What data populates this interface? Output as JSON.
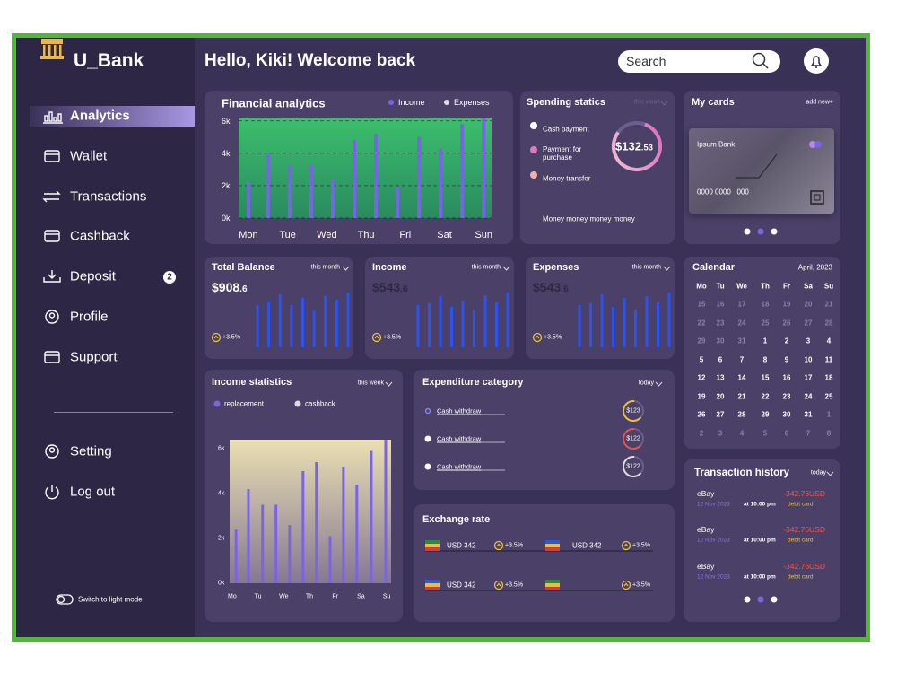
{
  "sidebar": {
    "logo": "U_Bank",
    "nav": [
      {
        "label": "Analytics"
      },
      {
        "label": "Wallet"
      },
      {
        "label": "Transactions"
      },
      {
        "label": "Cashback"
      },
      {
        "label": "Deposit",
        "badge": "2"
      },
      {
        "label": "Profile"
      },
      {
        "label": "Support"
      }
    ],
    "bottom_nav": [
      "Setting",
      "Log out"
    ],
    "theme_toggle": "Switch to light mode"
  },
  "header": {
    "greeting": "Hello, Kiki! Welcome back",
    "search_placeholder": "Search"
  },
  "financial_analytics": {
    "title": "Financial analytics",
    "legend": [
      {
        "name": "Income",
        "color": "#7b63e6"
      },
      {
        "name": "Expenses",
        "color": "#dddddd"
      }
    ],
    "chart": {
      "type": "bar",
      "color": "#7b63e6",
      "x": [
        0,
        0.5,
        1.05,
        1.6,
        2.15,
        2.7,
        3.25,
        3.8,
        4.35,
        4.9,
        5.45,
        6
      ],
      "values": [
        2200,
        4000,
        3300,
        3300,
        2400,
        4800,
        5200,
        1900,
        5000,
        4300,
        5800,
        6200
      ],
      "xlim": [
        -0.25,
        6.2
      ],
      "xticks": [
        {
          "value": 0,
          "label": "Mon"
        },
        {
          "value": 1,
          "label": "Tue"
        },
        {
          "value": 2,
          "label": "Wed"
        },
        {
          "value": 3,
          "label": "Thu"
        },
        {
          "value": 4,
          "label": "Fri"
        },
        {
          "value": 5,
          "label": "Sat"
        },
        {
          "value": 6,
          "label": "Sun"
        }
      ],
      "ylim": [
        0,
        6200
      ],
      "yticks": [
        {
          "value": 0,
          "label": "0k"
        },
        {
          "value": 2000,
          "label": "2k"
        },
        {
          "value": 4000,
          "label": "4k"
        },
        {
          "value": 6000,
          "label": "6k"
        }
      ],
      "grid": true
    }
  },
  "spending": {
    "title": "Spending statics",
    "period": "this week",
    "legend": [
      {
        "name": "Cash payment",
        "color": "#ffffff"
      },
      {
        "name": "Payment for purchase",
        "color": "#e07ac0"
      },
      {
        "name": "Money transfer",
        "color": "#f5b0a5"
      }
    ],
    "amount": "$132",
    "decimals": ".53",
    "caption": "Money money money money"
  },
  "cards": {
    "title": "My cards",
    "action": "add new+",
    "bank": "Ipsum Bank",
    "number": "0000 0000   000"
  },
  "summaries": [
    {
      "title": "Total Balance",
      "period": "this month",
      "amount": "$908",
      "decimals": ".6",
      "change": "+3.5%",
      "bars": [
        47,
        51,
        59,
        47,
        55,
        41,
        57,
        53,
        61
      ],
      "ylim": [
        0,
        65
      ],
      "color": "#2c52f0"
    },
    {
      "title": "Income",
      "period": "this month",
      "amount": "$543",
      "decimals": ".6",
      "change": "+3.5%",
      "bars": [
        47,
        49,
        57,
        45,
        52,
        42,
        58,
        50,
        61
      ],
      "ylim": [
        0,
        65
      ],
      "color": "#2c52f0"
    },
    {
      "title": "Expenses",
      "period": "this month",
      "amount": "$543",
      "decimals": ".6",
      "change": "+3.5%",
      "bars": [
        47,
        49,
        59,
        45,
        55,
        42,
        57,
        50,
        61
      ],
      "ylim": [
        0,
        65
      ],
      "color": "#2c52f0"
    }
  ],
  "income_statistics": {
    "title": "Income statistics",
    "period": "this week",
    "legend": [
      {
        "name": "replacement",
        "color": "#7b63e6"
      },
      {
        "name": "cashback",
        "color": "#dddddd"
      }
    ],
    "chart": {
      "type": "bar",
      "color": "#7b63e6",
      "x": [
        0.15,
        0.63,
        1.18,
        1.7,
        2.23,
        2.75,
        3.27,
        3.8,
        4.32,
        4.84,
        5.4,
        5.96
      ],
      "values": [
        2400,
        4200,
        3500,
        3500,
        2600,
        5000,
        5400,
        2100,
        5200,
        4400,
        5900,
        6400
      ],
      "xlim": [
        -0.1,
        6.17
      ],
      "xticks": [
        {
          "value": 0,
          "label": "Mo"
        },
        {
          "value": 1,
          "label": "Tu"
        },
        {
          "value": 2,
          "label": "We"
        },
        {
          "value": 3,
          "label": "Th"
        },
        {
          "value": 4,
          "label": "Fr"
        },
        {
          "value": 5,
          "label": "Sa"
        },
        {
          "value": 6,
          "label": "Su"
        }
      ],
      "ylim": [
        0,
        6400
      ],
      "yticks": [
        {
          "value": 0,
          "label": "0k"
        },
        {
          "value": 2000,
          "label": "2k"
        },
        {
          "value": 4000,
          "label": "4k"
        },
        {
          "value": 6000,
          "label": "6k"
        }
      ],
      "grid": false
    }
  },
  "expenditure": {
    "title": "Expenditure category",
    "period": "today",
    "rows": [
      {
        "label": "Cash withdraw",
        "amount": "$123",
        "color": "#e8c040"
      },
      {
        "label": "Cash withdraw",
        "amount": "$122",
        "color": "#e85050"
      },
      {
        "label": "Cash withdraw",
        "amount": "$122",
        "color": "#dddddd"
      }
    ]
  },
  "exchange": {
    "title": "Exchange rate",
    "rows": [
      {
        "pairs": [
          {
            "currency": "USD 342",
            "change": "+3.5%"
          },
          {
            "currency": "USD 342",
            "change": "+3.5%"
          }
        ]
      },
      {
        "pairs": [
          {
            "currency": "USD 342",
            "change": "+3.5%"
          },
          {
            "change": "+3.5%"
          }
        ]
      }
    ]
  },
  "calendar": {
    "title": "Calendar",
    "month": "April, 2023",
    "weekdays": [
      "Mo",
      "Tu",
      "We",
      "Th",
      "Fr",
      "Sa",
      "Su"
    ],
    "weeks": [
      [
        "15",
        "16",
        "17",
        "18",
        "19",
        "20",
        "21"
      ],
      [
        "22",
        "23",
        "24",
        "25",
        "26",
        "27",
        "28"
      ],
      [
        "29",
        "30",
        "31",
        "1",
        "2",
        "3",
        "4"
      ],
      [
        "5",
        "6",
        "7",
        "8",
        "9",
        "10",
        "11"
      ],
      [
        "12",
        "13",
        "14",
        "15",
        "16",
        "17",
        "18"
      ],
      [
        "19",
        "20",
        "21",
        "22",
        "23",
        "24",
        "25"
      ],
      [
        "26",
        "27",
        "28",
        "29",
        "30",
        "31",
        "1"
      ],
      [
        "2",
        "3",
        "4",
        "5",
        "6",
        "7",
        "8"
      ]
    ]
  },
  "transactions": {
    "title": "Transaction history",
    "period": "today",
    "items": [
      {
        "merchant": "eBay",
        "amount": "-342.76USD",
        "date": "12 Nov 2023",
        "time": "at 10:00 pm",
        "method": "debit card"
      },
      {
        "merchant": "eBay",
        "amount": "-342.76USD",
        "date": "12 Nov 2023",
        "time": "at 10:00 pm",
        "method": "debit card"
      },
      {
        "merchant": "eBay",
        "amount": "-342.76USD",
        "date": "12 Nov 2023",
        "time": "at 10:00 pm",
        "method": "debit card"
      }
    ]
  }
}
